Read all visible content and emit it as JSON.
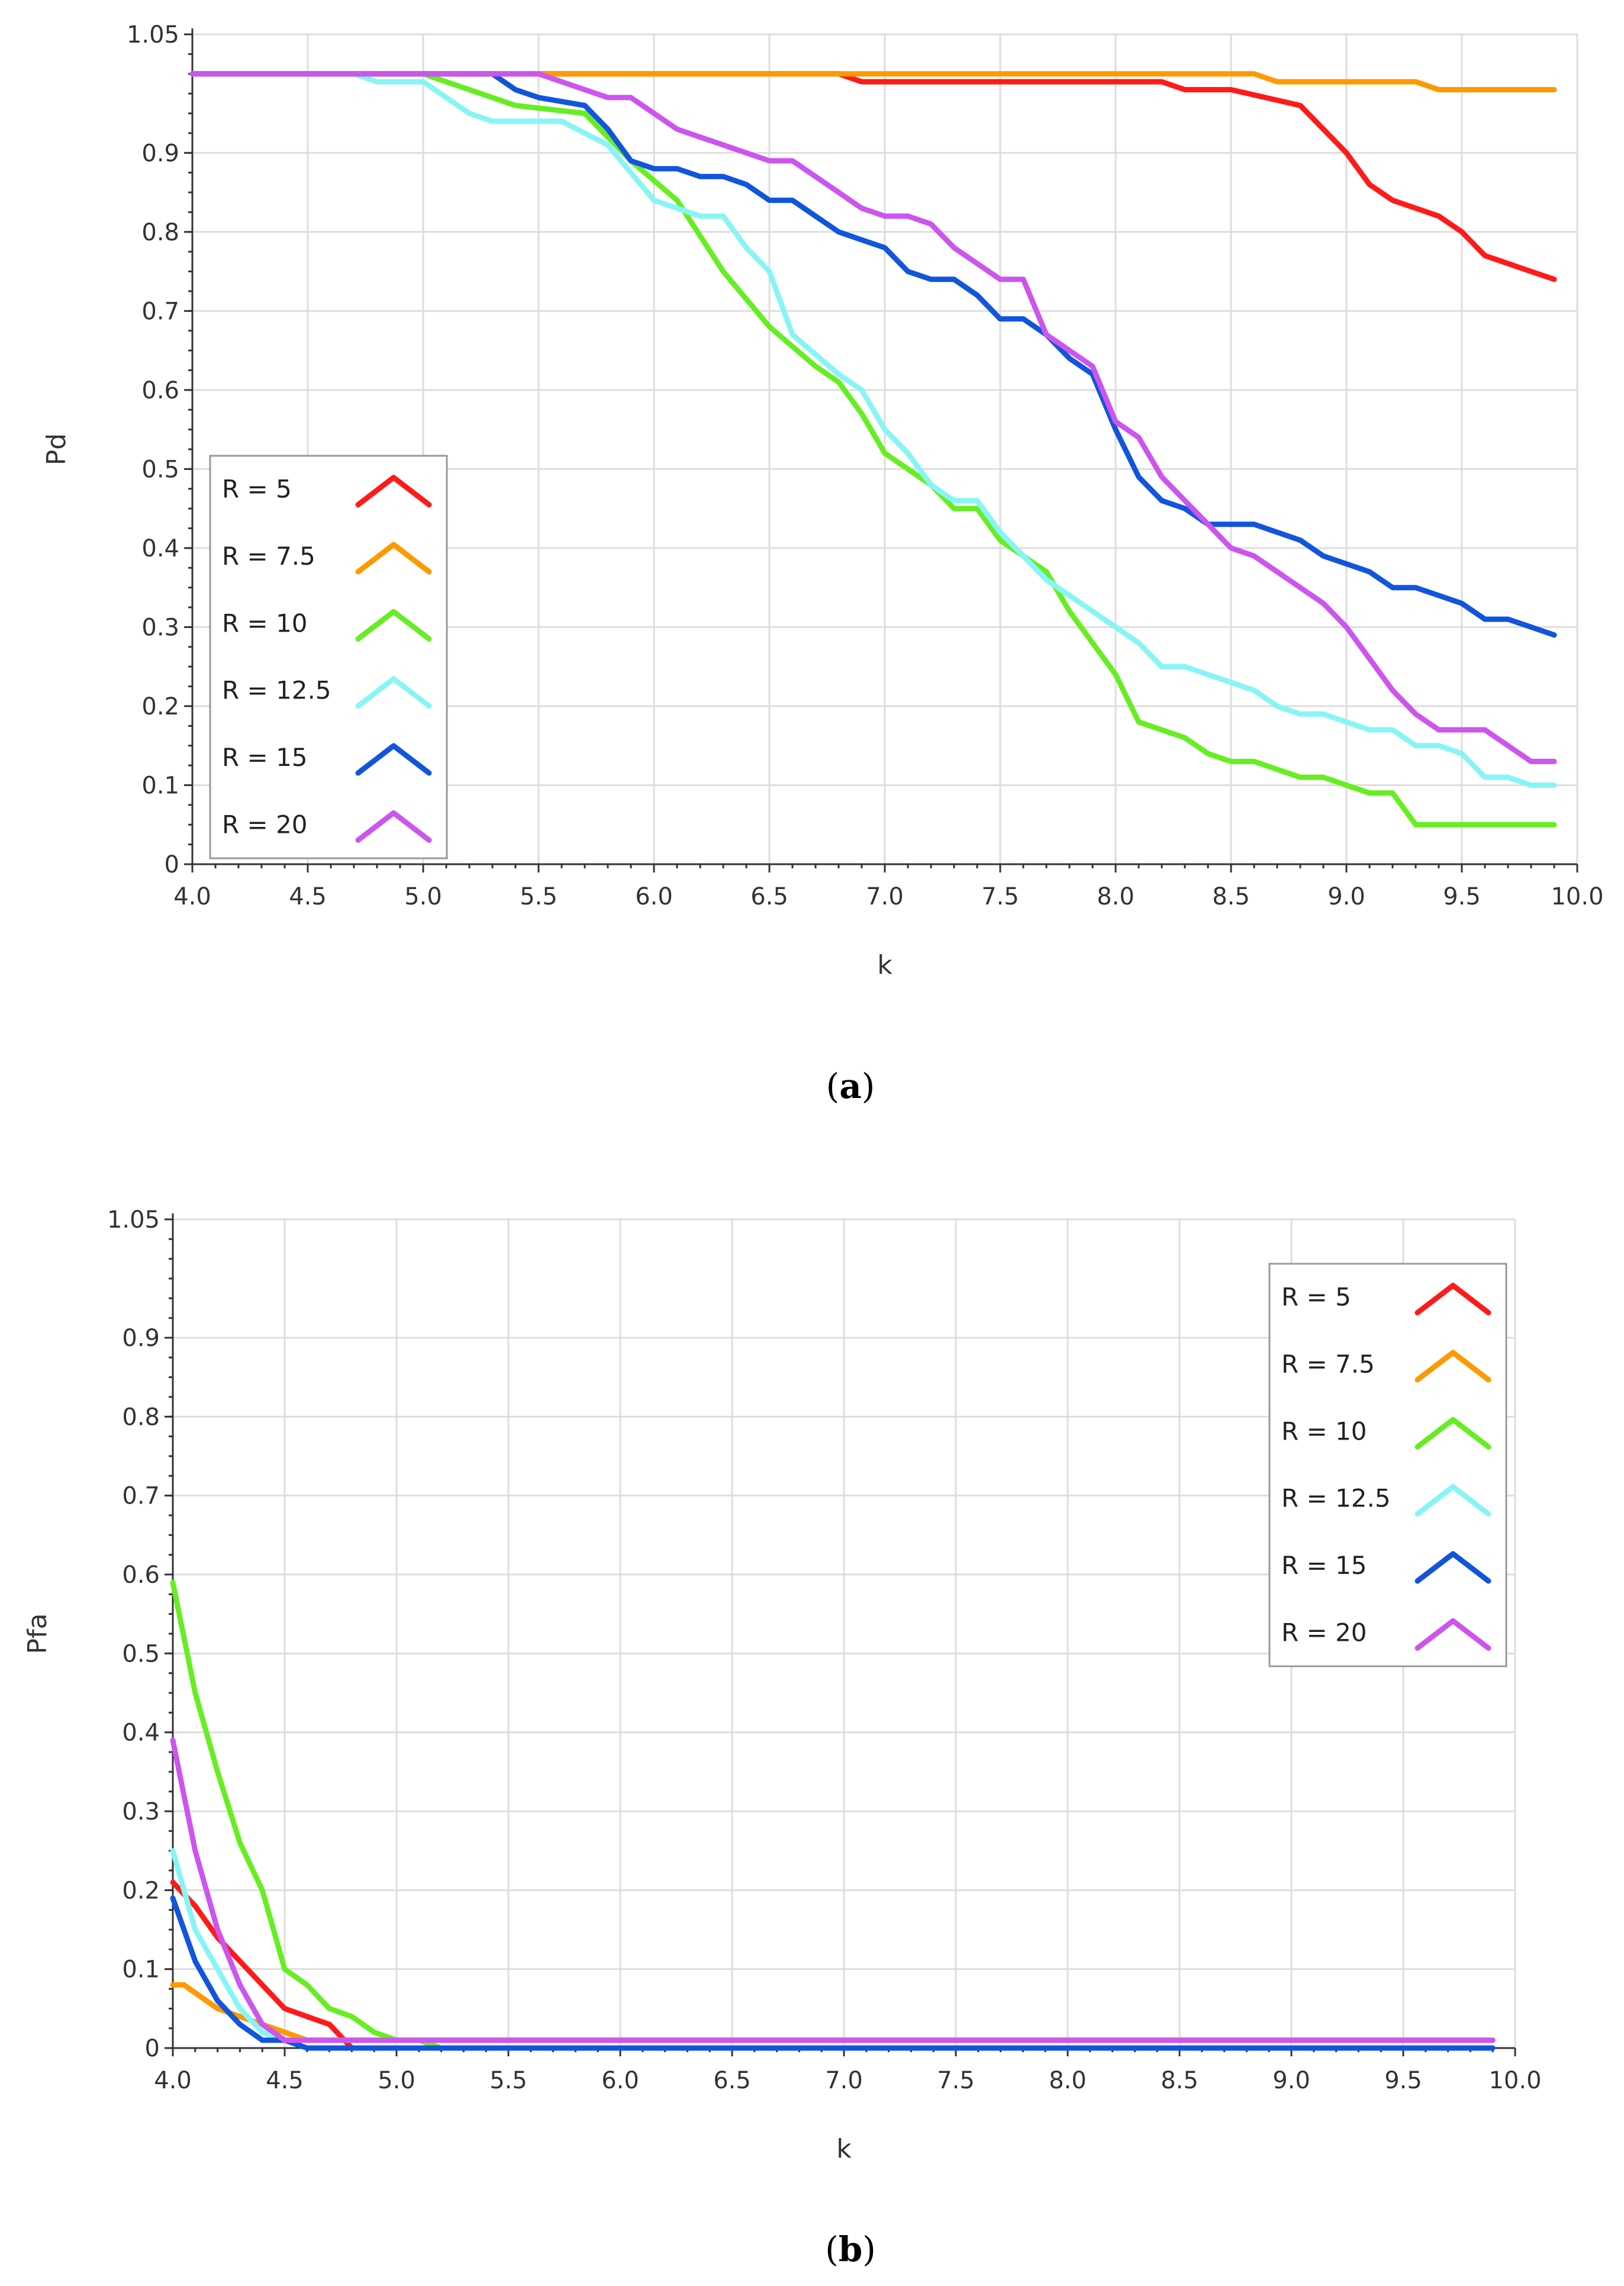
{
  "chart_data": [
    {
      "id": "a",
      "type": "line",
      "caption": "a",
      "xlabel": "k",
      "ylabel": "Pd",
      "xlim": [
        4.0,
        10.0
      ],
      "ylim": [
        0,
        1.05
      ],
      "xticks": [
        "4.0",
        "4.5",
        "5.0",
        "5.5",
        "6.0",
        "6.5",
        "7.0",
        "7.5",
        "8.0",
        "8.5",
        "9.0",
        "9.5",
        "10.0"
      ],
      "yticks": [
        "0",
        "0.1",
        "0.2",
        "0.3",
        "0.4",
        "0.5",
        "0.6",
        "0.7",
        "0.8",
        "0.9",
        "1.05"
      ],
      "grid": true,
      "legend_position": "bottom-left",
      "series": [
        {
          "name": "R = 5",
          "color": "#ff1a1a",
          "x": [
            4.0,
            6.8,
            6.9,
            8.2,
            8.3,
            8.5,
            8.8,
            8.9,
            9.0,
            9.1,
            9.2,
            9.3,
            9.4,
            9.5,
            9.6,
            9.7,
            9.8,
            9.9
          ],
          "y": [
            1.0,
            1.0,
            0.99,
            0.99,
            0.98,
            0.98,
            0.96,
            0.93,
            0.9,
            0.86,
            0.84,
            0.83,
            0.82,
            0.8,
            0.77,
            0.76,
            0.75,
            0.74
          ]
        },
        {
          "name": "R = 7.5",
          "color": "#ff9900",
          "x": [
            4.0,
            8.6,
            8.7,
            9.3,
            9.4,
            9.9
          ],
          "y": [
            1.0,
            1.0,
            0.99,
            0.99,
            0.98,
            0.98
          ]
        },
        {
          "name": "R = 10",
          "color": "#66ee22",
          "x": [
            4.0,
            5.0,
            5.2,
            5.4,
            5.7,
            5.9,
            6.1,
            6.3,
            6.5,
            6.7,
            6.8,
            6.9,
            7.0,
            7.1,
            7.2,
            7.3,
            7.4,
            7.5,
            7.6,
            7.7,
            7.8,
            7.9,
            8.0,
            8.1,
            8.2,
            8.3,
            8.4,
            8.5,
            8.6,
            8.7,
            8.8,
            8.9,
            9.0,
            9.1,
            9.2,
            9.3,
            9.4,
            9.9
          ],
          "y": [
            1.0,
            1.0,
            0.98,
            0.96,
            0.95,
            0.89,
            0.84,
            0.75,
            0.68,
            0.63,
            0.61,
            0.57,
            0.52,
            0.5,
            0.48,
            0.45,
            0.45,
            0.41,
            0.39,
            0.37,
            0.32,
            0.28,
            0.24,
            0.18,
            0.17,
            0.16,
            0.14,
            0.13,
            0.13,
            0.12,
            0.11,
            0.11,
            0.1,
            0.09,
            0.09,
            0.05,
            0.05,
            0.05
          ]
        },
        {
          "name": "R = 12.5",
          "color": "#88f5f5",
          "x": [
            4.0,
            4.7,
            4.8,
            5.0,
            5.2,
            5.3,
            5.6,
            5.8,
            6.0,
            6.2,
            6.3,
            6.4,
            6.5,
            6.6,
            6.8,
            6.9,
            7.0,
            7.1,
            7.2,
            7.3,
            7.4,
            7.5,
            7.6,
            7.7,
            7.8,
            7.9,
            8.0,
            8.1,
            8.2,
            8.3,
            8.4,
            8.5,
            8.6,
            8.7,
            8.8,
            8.9,
            9.0,
            9.1,
            9.2,
            9.3,
            9.4,
            9.5,
            9.6,
            9.7,
            9.8,
            9.9
          ],
          "y": [
            1.0,
            1.0,
            0.99,
            0.99,
            0.95,
            0.94,
            0.94,
            0.91,
            0.84,
            0.82,
            0.82,
            0.78,
            0.75,
            0.67,
            0.62,
            0.6,
            0.55,
            0.52,
            0.48,
            0.46,
            0.46,
            0.42,
            0.39,
            0.36,
            0.34,
            0.32,
            0.3,
            0.28,
            0.25,
            0.25,
            0.24,
            0.23,
            0.22,
            0.2,
            0.19,
            0.19,
            0.18,
            0.17,
            0.17,
            0.15,
            0.15,
            0.14,
            0.11,
            0.11,
            0.1,
            0.1
          ]
        },
        {
          "name": "R = 15",
          "color": "#1155dd",
          "x": [
            4.0,
            5.3,
            5.4,
            5.5,
            5.7,
            5.8,
            5.9,
            6.0,
            6.1,
            6.2,
            6.3,
            6.4,
            6.5,
            6.6,
            6.7,
            6.8,
            6.9,
            7.0,
            7.1,
            7.2,
            7.3,
            7.4,
            7.5,
            7.6,
            7.7,
            7.8,
            7.9,
            8.0,
            8.1,
            8.2,
            8.3,
            8.4,
            8.5,
            8.6,
            8.7,
            8.8,
            8.9,
            9.0,
            9.1,
            9.2,
            9.3,
            9.4,
            9.5,
            9.6,
            9.7,
            9.8,
            9.9
          ],
          "y": [
            1.0,
            1.0,
            0.98,
            0.97,
            0.96,
            0.93,
            0.89,
            0.88,
            0.88,
            0.87,
            0.87,
            0.86,
            0.84,
            0.84,
            0.82,
            0.8,
            0.79,
            0.78,
            0.75,
            0.74,
            0.74,
            0.72,
            0.69,
            0.69,
            0.67,
            0.64,
            0.62,
            0.55,
            0.49,
            0.46,
            0.45,
            0.43,
            0.43,
            0.43,
            0.42,
            0.41,
            0.39,
            0.38,
            0.37,
            0.35,
            0.35,
            0.34,
            0.33,
            0.31,
            0.31,
            0.3,
            0.29
          ]
        },
        {
          "name": "R = 20",
          "color": "#cc55ee",
          "x": [
            4.0,
            5.5,
            5.6,
            5.7,
            5.8,
            5.9,
            6.0,
            6.1,
            6.2,
            6.3,
            6.4,
            6.5,
            6.6,
            6.7,
            6.8,
            6.9,
            7.0,
            7.1,
            7.2,
            7.3,
            7.4,
            7.5,
            7.6,
            7.7,
            7.8,
            7.9,
            8.0,
            8.1,
            8.2,
            8.3,
            8.4,
            8.5,
            8.6,
            8.7,
            8.8,
            8.9,
            9.0,
            9.1,
            9.2,
            9.3,
            9.4,
            9.5,
            9.6,
            9.7,
            9.8,
            9.9
          ],
          "y": [
            1.0,
            1.0,
            0.99,
            0.98,
            0.97,
            0.97,
            0.95,
            0.93,
            0.92,
            0.91,
            0.9,
            0.89,
            0.89,
            0.87,
            0.85,
            0.83,
            0.82,
            0.82,
            0.81,
            0.78,
            0.76,
            0.74,
            0.74,
            0.67,
            0.65,
            0.63,
            0.56,
            0.54,
            0.49,
            0.46,
            0.43,
            0.4,
            0.39,
            0.37,
            0.35,
            0.33,
            0.3,
            0.26,
            0.22,
            0.19,
            0.17,
            0.17,
            0.17,
            0.15,
            0.13,
            0.13
          ]
        }
      ],
      "legend": [
        {
          "label": "R = 5"
        },
        {
          "label": "R = 7.5"
        },
        {
          "label": "R = 10"
        },
        {
          "label": "R = 12.5"
        },
        {
          "label": "R = 15"
        },
        {
          "label": "R = 20"
        }
      ]
    },
    {
      "id": "b",
      "type": "line",
      "caption": "b",
      "xlabel": "k",
      "ylabel": "Pfa",
      "xlim": [
        4.0,
        10.0
      ],
      "ylim": [
        0,
        1.05
      ],
      "xticks": [
        "4.0",
        "4.5",
        "5.0",
        "5.5",
        "6.0",
        "6.5",
        "7.0",
        "7.5",
        "8.0",
        "8.5",
        "9.0",
        "9.5",
        "10.0"
      ],
      "yticks": [
        "0",
        "0.1",
        "0.2",
        "0.3",
        "0.4",
        "0.5",
        "0.6",
        "0.7",
        "0.8",
        "0.9",
        "1.05"
      ],
      "grid": true,
      "legend_position": "top-right",
      "series": [
        {
          "name": "R = 5",
          "color": "#ff1a1a",
          "x": [
            4.0,
            4.1,
            4.2,
            4.3,
            4.4,
            4.5,
            4.6,
            4.7,
            4.8,
            4.9,
            9.9
          ],
          "y": [
            0.21,
            0.18,
            0.14,
            0.11,
            0.08,
            0.05,
            0.04,
            0.03,
            0.0,
            0.0,
            0.0
          ]
        },
        {
          "name": "R = 7.5",
          "color": "#ff9900",
          "x": [
            4.0,
            4.05,
            4.1,
            4.2,
            4.3,
            4.4,
            4.5,
            4.6,
            4.7,
            9.9
          ],
          "y": [
            0.08,
            0.08,
            0.07,
            0.05,
            0.04,
            0.03,
            0.02,
            0.01,
            0.01,
            0.01
          ]
        },
        {
          "name": "R = 10",
          "color": "#66ee22",
          "x": [
            4.0,
            4.1,
            4.2,
            4.3,
            4.4,
            4.5,
            4.6,
            4.7,
            4.8,
            4.9,
            5.0,
            5.1,
            5.2,
            9.9
          ],
          "y": [
            0.59,
            0.45,
            0.35,
            0.26,
            0.2,
            0.1,
            0.08,
            0.05,
            0.04,
            0.02,
            0.01,
            0.01,
            0.0,
            0.0
          ]
        },
        {
          "name": "R = 12.5",
          "color": "#88f5f5",
          "x": [
            4.0,
            4.1,
            4.2,
            4.3,
            4.4,
            4.5,
            9.9
          ],
          "y": [
            0.25,
            0.15,
            0.1,
            0.05,
            0.02,
            0.01,
            0.01
          ]
        },
        {
          "name": "R = 15",
          "color": "#1155dd",
          "x": [
            4.0,
            4.1,
            4.2,
            4.3,
            4.4,
            4.5,
            4.6,
            9.9
          ],
          "y": [
            0.19,
            0.11,
            0.06,
            0.03,
            0.01,
            0.01,
            0.0,
            0.0
          ]
        },
        {
          "name": "R = 20",
          "color": "#cc55ee",
          "x": [
            4.0,
            4.1,
            4.2,
            4.3,
            4.4,
            4.5,
            9.9
          ],
          "y": [
            0.39,
            0.25,
            0.15,
            0.08,
            0.03,
            0.01,
            0.01
          ]
        }
      ],
      "legend": [
        {
          "label": "R = 5"
        },
        {
          "label": "R = 7.5"
        },
        {
          "label": "R = 10"
        },
        {
          "label": "R = 12.5"
        },
        {
          "label": "R = 15"
        },
        {
          "label": "R = 20"
        }
      ]
    }
  ]
}
